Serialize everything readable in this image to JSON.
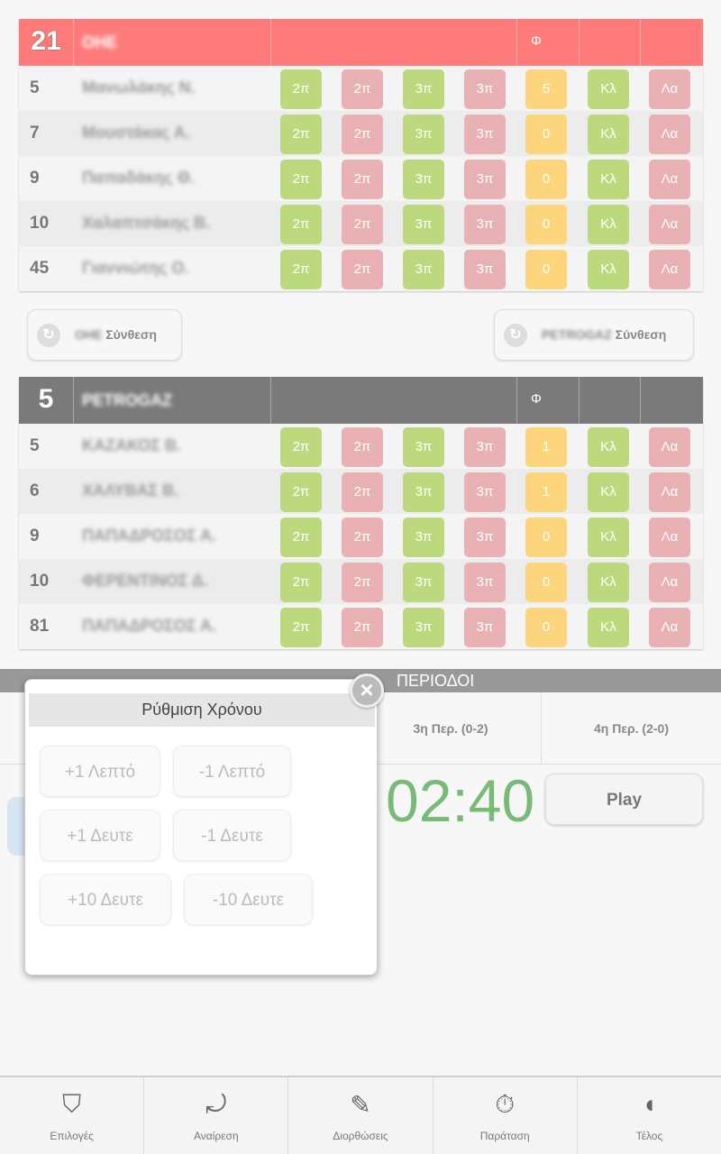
{
  "team1": {
    "score": "21",
    "name": "ΟΗΕ",
    "header_color": "#ff7b7b",
    "foul_header": "Φ",
    "players": [
      {
        "number": "5",
        "name": "Μανωλάκης Ν.",
        "fouls": "5"
      },
      {
        "number": "7",
        "name": "Μουστάκας Α.",
        "fouls": "0"
      },
      {
        "number": "9",
        "name": "Παπαδάκης Θ.",
        "fouls": "0"
      },
      {
        "number": "10",
        "name": "Χαλαπτσάκης Β.",
        "fouls": "0"
      },
      {
        "number": "45",
        "name": "Γιαννιώτης Ο.",
        "fouls": "0"
      }
    ]
  },
  "team2": {
    "score": "5",
    "name": "PETROGAZ",
    "header_color": "#7a7a7a",
    "foul_header": "Φ",
    "players": [
      {
        "number": "5",
        "name": "ΚΑΖΑΚΟΣ Β.",
        "fouls": "1"
      },
      {
        "number": "6",
        "name": "ΧΑΛΥΒΑΣ Β.",
        "fouls": "1"
      },
      {
        "number": "9",
        "name": "ΠΑΠΑΔΡΟΣΟΣ Α.",
        "fouls": "0"
      },
      {
        "number": "10",
        "name": "ΦΕΡΕΝΤΙΝΟΣ Δ.",
        "fouls": "0"
      },
      {
        "number": "81",
        "name": "ΠΑΠΑΔΡΟΣΟΣ Α.",
        "fouls": "0"
      }
    ]
  },
  "action_labels": {
    "two_made": "2π",
    "two_miss": "2π",
    "three_made": "3π",
    "three_miss": "3π",
    "steal": "Κλ",
    "turnover": "Λα"
  },
  "composition": {
    "team1_name": "ΟΗΕ",
    "team2_name": "PETROGAZ",
    "suffix": "Σύνθεση"
  },
  "periods": {
    "title": "ΠΕΡΙΟΔΟΙ",
    "tabs": [
      "3η Περ. (0-2)",
      "4η Περ. (2-0)"
    ]
  },
  "clock": {
    "time": "02:40",
    "play_label": "Play"
  },
  "modal": {
    "title": "Ρύθμιση Χρόνου",
    "buttons": [
      "+1 Λεπτό",
      "-1 Λεπτό",
      "+1 Δευτε",
      "-1 Δευτε",
      "+10 Δευτε",
      "-10 Δευτε"
    ]
  },
  "bottom_nav": [
    {
      "label": "Επιλογές",
      "icon": "basket-icon"
    },
    {
      "label": "Αναίρεση",
      "icon": "undo-icon"
    },
    {
      "label": "Διορθώσεις",
      "icon": "edit-icon"
    },
    {
      "label": "Παράταση",
      "icon": "stopwatch-icon"
    },
    {
      "label": "Τέλος",
      "icon": "whistle-icon"
    }
  ]
}
